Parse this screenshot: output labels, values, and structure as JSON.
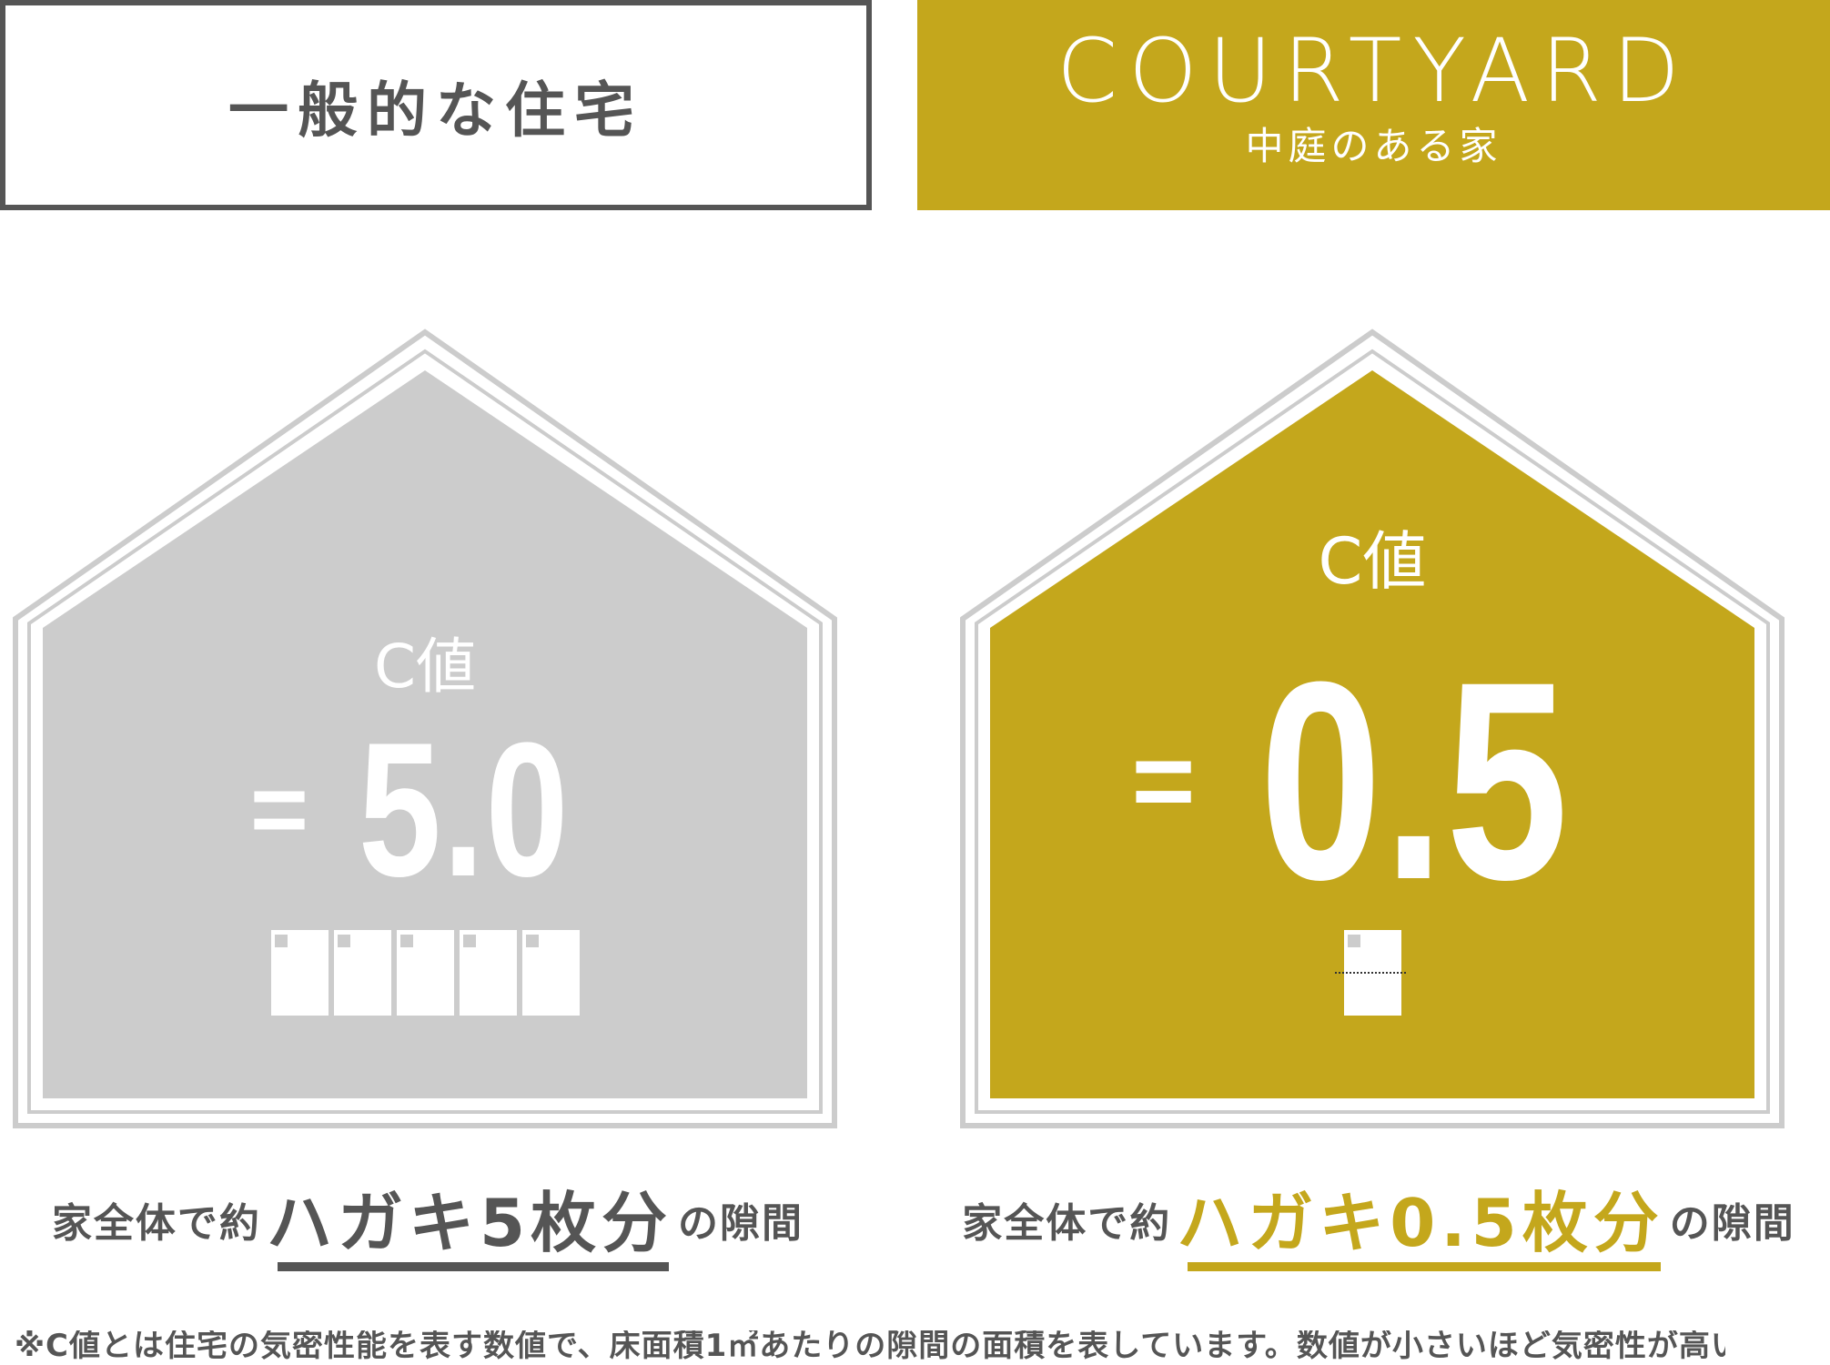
{
  "header": {
    "left_label": "一般的な住宅",
    "brand": "COURTYARD",
    "brand_sub": "中庭のある家"
  },
  "comparison": {
    "left": {
      "metric_label": "C値",
      "equals": "=",
      "value": "5.0",
      "postcard_count": 5,
      "caption_prefix": "家全体で約",
      "caption_highlight": "ハガキ5枚分",
      "caption_suffix": "の隙間"
    },
    "right": {
      "metric_label": "C値",
      "equals": "=",
      "value": "0.5",
      "postcard_count": 0.5,
      "caption_prefix": "家全体で約",
      "caption_highlight": "ハガキ0.5枚分",
      "caption_suffix": "の隙間"
    }
  },
  "footnote": "※C値とは住宅の気密性能を表す数値で、床面積1㎡あたりの隙間の面積を表しています。数値が小さいほど気密性が高い住宅といえます。",
  "colors": {
    "accent": "#c4a71c",
    "gray_fill": "#cccccc",
    "text": "#555555",
    "outline": "#cccccc"
  }
}
